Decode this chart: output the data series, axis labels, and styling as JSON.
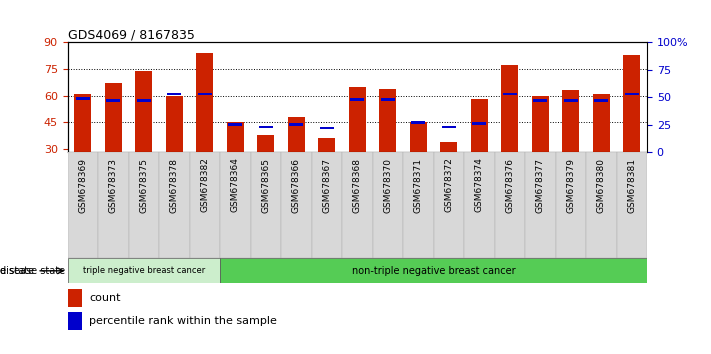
{
  "title": "GDS4069 / 8167835",
  "samples": [
    "GSM678369",
    "GSM678373",
    "GSM678375",
    "GSM678378",
    "GSM678382",
    "GSM678364",
    "GSM678365",
    "GSM678366",
    "GSM678367",
    "GSM678368",
    "GSM678370",
    "GSM678371",
    "GSM678372",
    "GSM678374",
    "GSM678376",
    "GSM678377",
    "GSM678379",
    "GSM678380",
    "GSM678381"
  ],
  "counts": [
    61,
    67,
    74,
    60,
    84,
    45,
    38,
    48,
    36,
    65,
    64,
    45,
    34,
    58,
    77,
    60,
    63,
    61,
    83
  ],
  "percentiles": [
    49,
    47,
    47,
    53,
    53,
    25,
    23,
    25,
    22,
    48,
    48,
    27,
    23,
    26,
    53,
    47,
    47,
    47,
    53
  ],
  "ylim_left": [
    28,
    90
  ],
  "ylim_right": [
    0,
    100
  ],
  "yticks_left": [
    30,
    45,
    60,
    75,
    90
  ],
  "yticks_right": [
    0,
    25,
    50,
    75,
    100
  ],
  "ytick_labels_right": [
    "0",
    "25",
    "50",
    "75",
    "100%"
  ],
  "bar_color": "#cc2200",
  "percentile_color": "#0000cc",
  "group1_label": "triple negative breast cancer",
  "group2_label": "non-triple negative breast cancer",
  "group1_count": 5,
  "disease_state_label": "disease state",
  "legend_count_label": "count",
  "legend_percentile_label": "percentile rank within the sample",
  "bar_bottom": 28,
  "bg_color": "#ffffff",
  "tick_label_color_left": "#cc2200",
  "tick_label_color_right": "#0000cc",
  "group1_bg": "#cceecc",
  "group2_bg": "#55cc55",
  "xtick_bg": "#d8d8d8"
}
